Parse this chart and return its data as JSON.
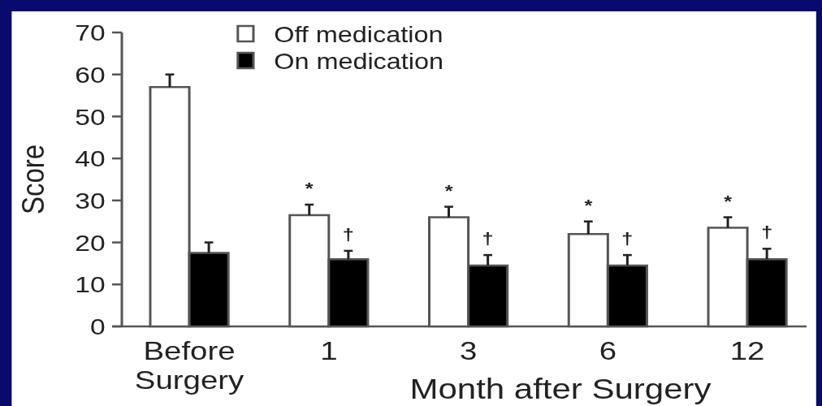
{
  "chart_data": {
    "type": "bar",
    "categories": [
      "Before\nSurgery",
      "1",
      "3",
      "6",
      "12"
    ],
    "xlabel": "Month after Surgery",
    "ylabel": "Score",
    "ylim": [
      0,
      70
    ],
    "yticks": [
      0,
      10,
      20,
      30,
      40,
      50,
      60,
      70
    ],
    "legend": "top left",
    "series": [
      {
        "name": "Off medication",
        "color": "#ffffff",
        "values": [
          57,
          26.5,
          26,
          22,
          23.5
        ],
        "errors": [
          [
            57,
            60
          ],
          [
            26.5,
            29
          ],
          [
            26,
            28.5
          ],
          [
            22,
            25
          ],
          [
            23.5,
            26
          ]
        ],
        "value_labels": [
          null,
          "*",
          "*",
          "*",
          "*"
        ]
      },
      {
        "name": "On medication",
        "color": "#000000",
        "values": [
          17.5,
          16,
          14.5,
          14.5,
          16
        ],
        "errors": [
          [
            17.5,
            20
          ],
          [
            16,
            18
          ],
          [
            14.5,
            17
          ],
          [
            14.5,
            17
          ],
          [
            16,
            18.5
          ]
        ],
        "value_labels": [
          null,
          "†",
          "†",
          "†",
          "†"
        ]
      }
    ]
  }
}
